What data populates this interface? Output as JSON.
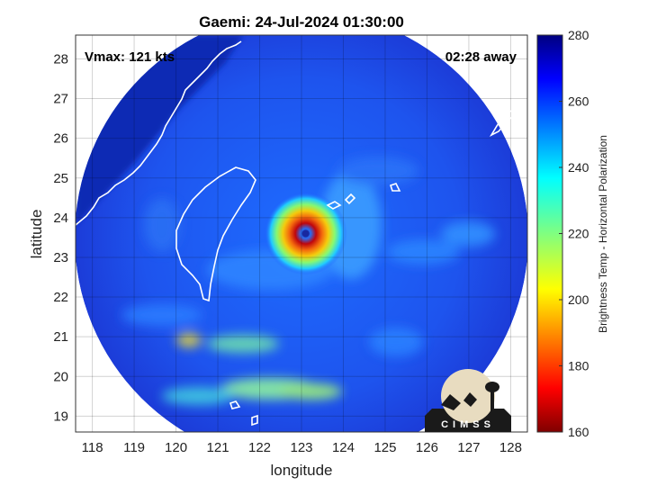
{
  "title": "Gaemi: 24-Jul-2024 01:30:00",
  "annotations": {
    "vmax": "Vmax: 121 kts",
    "time_away": "02:28 away"
  },
  "axes": {
    "xlabel": "longitude",
    "ylabel": "latitude",
    "xlim": [
      117.6,
      128.4
    ],
    "ylim": [
      18.6,
      28.6
    ],
    "xticks": [
      "118",
      "119",
      "120",
      "121",
      "122",
      "123",
      "124",
      "125",
      "126",
      "127",
      "128"
    ],
    "yticks": [
      "19",
      "20",
      "21",
      "22",
      "23",
      "24",
      "25",
      "26",
      "27",
      "28"
    ],
    "grid": true
  },
  "colorbar": {
    "label": "Brightness Temp - Horizontal Polarization",
    "ticks": [
      "160",
      "180",
      "200",
      "220",
      "240",
      "260",
      "280"
    ],
    "range": [
      160,
      280
    ],
    "colormap": "jet"
  },
  "storm": {
    "name": "Gaemi",
    "eye_lon": 123.1,
    "eye_lat": 23.6
  },
  "swath": {
    "center_lon": 123.0,
    "center_lat": 23.5
  },
  "logo": {
    "text": "CIMSS"
  },
  "colors": {
    "background": "#1e3cdc",
    "outside": "#0a1a8c",
    "coast": "#ffffff"
  }
}
